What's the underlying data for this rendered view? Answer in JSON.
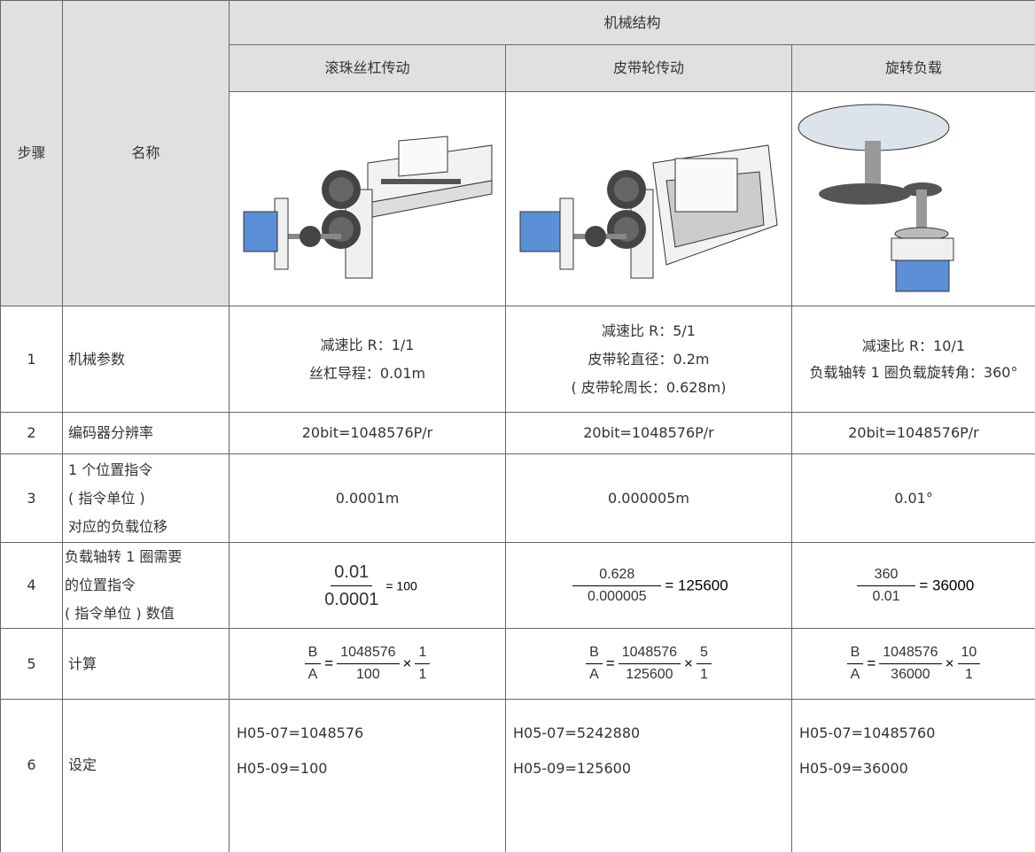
{
  "table": {
    "header": {
      "step": "步骤",
      "name": "名称",
      "group": "机械结构",
      "columns": [
        "滚珠丝杠传动",
        "皮带轮传动",
        "旋转负载"
      ]
    },
    "rows": [
      {
        "step": "1",
        "name": [
          "机械参数"
        ],
        "cells": [
          [
            "减速比 R：1/1",
            "丝杠导程：0.01m"
          ],
          [
            "减速比 R：5/1",
            "皮带轮直径：0.2m",
            "( 皮带轮周长：0.628m)"
          ],
          [
            "减速比 R：10/1",
            "负载轴转 1 圈负载旋转角：360°"
          ]
        ]
      },
      {
        "step": "2",
        "name": [
          "编码器分辨率"
        ],
        "cells": [
          [
            "20bit=1048576P/r"
          ],
          [
            "20bit=1048576P/r"
          ],
          [
            "20bit=1048576P/r"
          ]
        ]
      },
      {
        "step": "3",
        "name": [
          "1 个位置指令",
          "( 指令单位 )",
          "对应的负载位移"
        ],
        "cells": [
          [
            "0.0001m"
          ],
          [
            "0.000005m"
          ],
          [
            "0.01°"
          ]
        ]
      },
      {
        "step": "4",
        "name": [
          "负载轴转 1 圈需要",
          "的位置指令",
          "( 指令单位 ) 数值"
        ],
        "fractions": [
          {
            "num": "0.01",
            "den": "0.0001",
            "result": "= 100"
          },
          {
            "num": "0.628",
            "den": "0.000005",
            "result": "=  125600"
          },
          {
            "num": "360",
            "den": "0.01",
            "result": "=  36000"
          }
        ]
      },
      {
        "step": "5",
        "name": [
          "计算"
        ],
        "formulas": [
          {
            "lnum": "B",
            "lden": "A",
            "eq": "=",
            "num": "1048576",
            "den": "100",
            "times": "×",
            "num2": "1",
            "den2": "1"
          },
          {
            "lnum": "B",
            "lden": "A",
            "eq": "=",
            "num": "1048576",
            "den": "125600",
            "times": "×",
            "num2": "5",
            "den2": "1"
          },
          {
            "lnum": "B",
            "lden": "A",
            "eq": "=",
            "num": "1048576",
            "den": "36000",
            "times": "×",
            "num2": "10",
            "den2": "1"
          }
        ]
      },
      {
        "step": "6",
        "name": [
          "设定"
        ],
        "cells": [
          [
            "H05-07=1048576",
            "H05-09=100"
          ],
          [
            "H05-07=5242880",
            "H05-09=125600"
          ],
          [
            "H05-07=10485760",
            "H05-09=36000"
          ]
        ]
      }
    ]
  }
}
